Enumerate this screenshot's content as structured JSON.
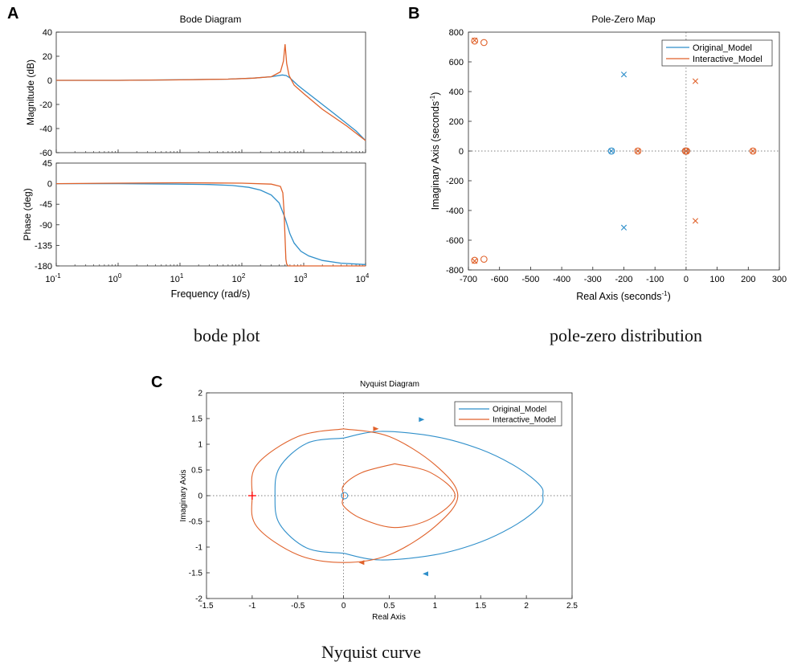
{
  "panel_labels": [
    "A",
    "B",
    "C"
  ],
  "captions": {
    "a": "bode plot",
    "b": "pole-zero distribution",
    "c": "Nyquist curve"
  },
  "colors": {
    "original": "#2f8fca",
    "interactive": "#e0622b",
    "axis": "#262626",
    "critical": "#ff0000"
  },
  "chart_data": [
    {
      "type": "line",
      "id": "bode",
      "title": "Bode Diagram",
      "xlabel": "Frequency  (rad/s)",
      "xscale": "log",
      "xlim": [
        0.1,
        10000
      ],
      "xticks": [
        0.1,
        1,
        10,
        100,
        1000,
        10000
      ],
      "xtick_labels": [
        [
          "10",
          "-1"
        ],
        [
          "10",
          "0"
        ],
        [
          "10",
          "1"
        ],
        [
          "10",
          "2"
        ],
        [
          "10",
          "3"
        ],
        [
          "10",
          "4"
        ]
      ],
      "magnitude": {
        "ylabel": "Magnitude (dB)",
        "ylim": [
          -60,
          40
        ],
        "yticks": [
          40,
          20,
          0,
          -20,
          -40,
          -60
        ],
        "series": [
          {
            "name": "Original_Model",
            "x": [
              0.1,
              1,
              10,
              60,
              150,
              300,
              450,
              520,
              600,
              800,
              1000,
              1500,
              2000,
              3000,
              5000,
              7000,
              10000
            ],
            "y": [
              0,
              0,
              0.5,
              1,
              1.8,
              3,
              4.5,
              4,
              2,
              -4,
              -8,
              -15,
              -20,
              -27,
              -36,
              -42,
              -50
            ]
          },
          {
            "name": "Interactive_Model",
            "x": [
              0.1,
              1,
              10,
              60,
              150,
              300,
              420,
              470,
              500,
              530,
              580,
              700,
              1000,
              2000,
              5000,
              10000
            ],
            "y": [
              0,
              0,
              0.4,
              1,
              1.8,
              3,
              7,
              16,
              30,
              14,
              4,
              -4,
              -11,
              -24,
              -38,
              -50
            ]
          }
        ]
      },
      "phase": {
        "ylabel": "Phase (deg)",
        "ylim": [
          -180,
          45
        ],
        "yticks": [
          45,
          0,
          -45,
          -90,
          -135,
          -180
        ],
        "series": [
          {
            "name": "Original_Model",
            "x": [
              0.1,
              1,
              10,
              30,
              70,
              130,
              200,
              300,
              400,
              500,
              600,
              700,
              900,
              1200,
              2000,
              4000,
              10000
            ],
            "y": [
              0,
              0,
              -1,
              -2,
              -4,
              -8,
              -14,
              -25,
              -42,
              -75,
              -110,
              -130,
              -148,
              -158,
              -168,
              -174,
              -177
            ]
          },
          {
            "name": "Interactive_Model",
            "x": [
              0.1,
              1,
              10,
              100,
              300,
              420,
              460,
              480,
              500,
              515,
              530,
              560,
              700,
              10000
            ],
            "y": [
              0,
              1,
              2,
              1,
              -1,
              -6,
              -20,
              -60,
              -120,
              -165,
              -176,
              -180,
              -180,
              -180
            ]
          }
        ]
      }
    },
    {
      "type": "scatter",
      "id": "pzmap",
      "title": "Pole-Zero Map",
      "xlabel": "Real Axis (seconds",
      "ylabel": "Imaginary Axis (seconds",
      "unit_superscript": "-1",
      "label_close": ")",
      "xlim": [
        -700,
        300
      ],
      "ylim": [
        -800,
        800
      ],
      "xticks": [
        -700,
        -600,
        -500,
        -400,
        -300,
        -200,
        -100,
        0,
        100,
        200,
        300
      ],
      "yticks": [
        800,
        600,
        400,
        200,
        0,
        -200,
        -400,
        -600,
        -800
      ],
      "legend": {
        "position": "top-right",
        "entries": [
          "Original_Model",
          "Interactive_Model"
        ]
      },
      "series": [
        {
          "name": "Original_Model",
          "poles": [
            [
              -200,
              515
            ],
            [
              -200,
              -515
            ],
            [
              -240,
              0
            ],
            [
              0,
              0
            ]
          ],
          "zeros": [
            [
              -240,
              0
            ],
            [
              -2,
              0
            ]
          ]
        },
        {
          "name": "Interactive_Model",
          "poles": [
            [
              30,
              470
            ],
            [
              30,
              -470
            ],
            [
              -680,
              745
            ],
            [
              -680,
              -740
            ],
            [
              -155,
              0
            ],
            [
              215,
              0
            ],
            [
              0,
              0
            ]
          ],
          "zeros": [
            [
              -680,
              740
            ],
            [
              -650,
              730
            ],
            [
              -680,
              -735
            ],
            [
              -650,
              -728
            ],
            [
              -155,
              0
            ],
            [
              215,
              0
            ],
            [
              -2,
              0
            ],
            [
              2,
              0
            ]
          ]
        }
      ]
    },
    {
      "type": "line",
      "id": "nyquist",
      "title": "Nyquist Diagram",
      "xlabel": "Real Axis",
      "ylabel": "Imaginary Axis",
      "xlim": [
        -1.5,
        2.5
      ],
      "ylim": [
        -2,
        2
      ],
      "xticks": [
        -1.5,
        -1,
        -0.5,
        0,
        0.5,
        1,
        1.5,
        2,
        2.5
      ],
      "xtick_labels": [
        "-1.5",
        "-1",
        "-0.5",
        "0",
        "0.5",
        "1",
        "1.5",
        "2",
        "2.5"
      ],
      "yticks": [
        2,
        1.5,
        1,
        0.5,
        0,
        -0.5,
        -1,
        -1.5,
        -2
      ],
      "ytick_labels": [
        "2",
        "1.5",
        "1",
        "0.5",
        "0",
        "-0.5",
        "-1",
        "-1.5",
        "-2"
      ],
      "critical_point": [
        -1,
        0
      ],
      "legend": {
        "position": "top-right",
        "entries": [
          "Original_Model",
          "Interactive_Model"
        ]
      },
      "series": [
        {
          "name": "Original_Model",
          "outer": [
            [
              0,
              -1.12
            ],
            [
              0.4,
              -1.25
            ],
            [
              1,
              -1.15
            ],
            [
              1.5,
              -0.9
            ],
            [
              1.9,
              -0.55
            ],
            [
              2.15,
              -0.2
            ],
            [
              2.18,
              0
            ],
            [
              2.15,
              0.2
            ],
            [
              1.9,
              0.55
            ],
            [
              1.5,
              0.9
            ],
            [
              1,
              1.15
            ],
            [
              0.4,
              1.25
            ],
            [
              0,
              1.12
            ]
          ],
          "inner": [
            [
              0,
              1.12
            ],
            [
              -0.4,
              1.02
            ],
            [
              -0.7,
              0.55
            ],
            [
              -0.75,
              0
            ],
            [
              -0.7,
              -0.55
            ],
            [
              -0.4,
              -1.02
            ],
            [
              0,
              -1.12
            ]
          ],
          "arrows": [
            [
              0.85,
              1.48,
              "right"
            ],
            [
              0.9,
              -1.52,
              "left"
            ]
          ]
        },
        {
          "name": "Interactive_Model",
          "outer": [
            [
              0,
              1.3
            ],
            [
              -0.5,
              1.15
            ],
            [
              -0.95,
              0.6
            ],
            [
              -1.0,
              0
            ],
            [
              -0.95,
              -0.6
            ],
            [
              -0.5,
              -1.15
            ],
            [
              0,
              -1.3
            ],
            [
              0.5,
              -1.15
            ],
            [
              1,
              -0.6
            ],
            [
              1.25,
              0
            ],
            [
              1,
              0.6
            ],
            [
              0.5,
              1.15
            ],
            [
              0,
              1.3
            ]
          ],
          "inner": [
            [
              0.56,
              0.62
            ],
            [
              0.2,
              0.45
            ],
            [
              0,
              0.2
            ],
            [
              0,
              0
            ],
            [
              0,
              -0.2
            ],
            [
              0.2,
              -0.45
            ],
            [
              0.56,
              -0.62
            ],
            [
              0.95,
              -0.45
            ],
            [
              1.22,
              0
            ],
            [
              0.95,
              0.45
            ],
            [
              0.56,
              0.62
            ]
          ],
          "arrows": [
            [
              0.35,
              1.3,
              "right"
            ],
            [
              0.2,
              -1.3,
              "left"
            ]
          ]
        }
      ]
    }
  ]
}
